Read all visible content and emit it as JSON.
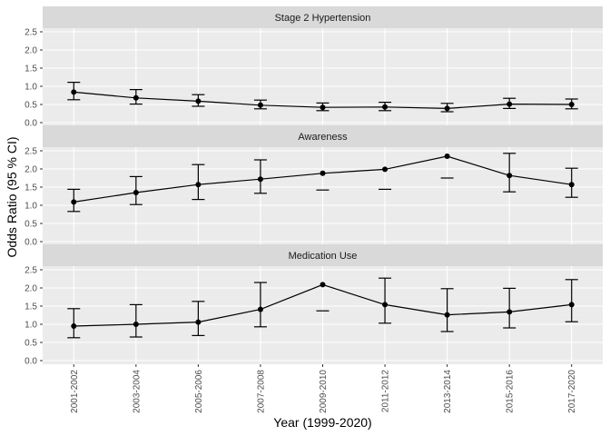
{
  "chart_data": {
    "type": "line",
    "ylabel": "Odds Ratio (95 % CI)",
    "xlabel": "Year (1999-2020)",
    "categories": [
      "2001-2002",
      "2003-2004",
      "2005-2006",
      "2007-2008",
      "2009-2010",
      "2011-2012",
      "2013-2014",
      "2015-2016",
      "2017-2020"
    ],
    "ylim": [
      -0.1,
      2.6
    ],
    "yticks": [
      "0.0",
      "0.5",
      "1.0",
      "1.5",
      "2.0",
      "2.5"
    ],
    "grid": true,
    "panels": [
      {
        "title": "Stage 2 Hypertension",
        "values": [
          0.84,
          0.68,
          0.59,
          0.48,
          0.42,
          0.43,
          0.39,
          0.51,
          0.5
        ],
        "lower": [
          0.63,
          0.51,
          0.45,
          0.38,
          0.33,
          0.33,
          0.3,
          0.39,
          0.38
        ],
        "upper": [
          1.11,
          0.91,
          0.77,
          0.62,
          0.54,
          0.56,
          0.53,
          0.67,
          0.65
        ]
      },
      {
        "title": "Awareness",
        "values": [
          1.09,
          1.35,
          1.57,
          1.72,
          1.88,
          1.99,
          2.35,
          1.82,
          1.57
        ],
        "lower": [
          0.83,
          1.02,
          1.16,
          1.33,
          1.42,
          1.44,
          1.75,
          1.37,
          1.22
        ],
        "upper": [
          1.44,
          1.79,
          2.12,
          2.25,
          null,
          null,
          null,
          2.43,
          2.02
        ]
      },
      {
        "title": "Medication Use",
        "values": [
          0.95,
          1.0,
          1.06,
          1.41,
          2.09,
          1.54,
          1.26,
          1.34,
          1.54
        ],
        "lower": [
          0.63,
          0.65,
          0.69,
          0.93,
          1.37,
          1.03,
          0.8,
          0.9,
          1.07
        ],
        "upper": [
          1.43,
          1.54,
          1.63,
          2.15,
          null,
          2.27,
          1.98,
          1.99,
          2.23
        ]
      }
    ]
  },
  "colors": {
    "panel_bg": "#ebebeb",
    "strip_bg": "#d9d9d9",
    "grid_major": "#ffffff",
    "grid_minor": "#f2f2f2",
    "series": "#000000"
  }
}
